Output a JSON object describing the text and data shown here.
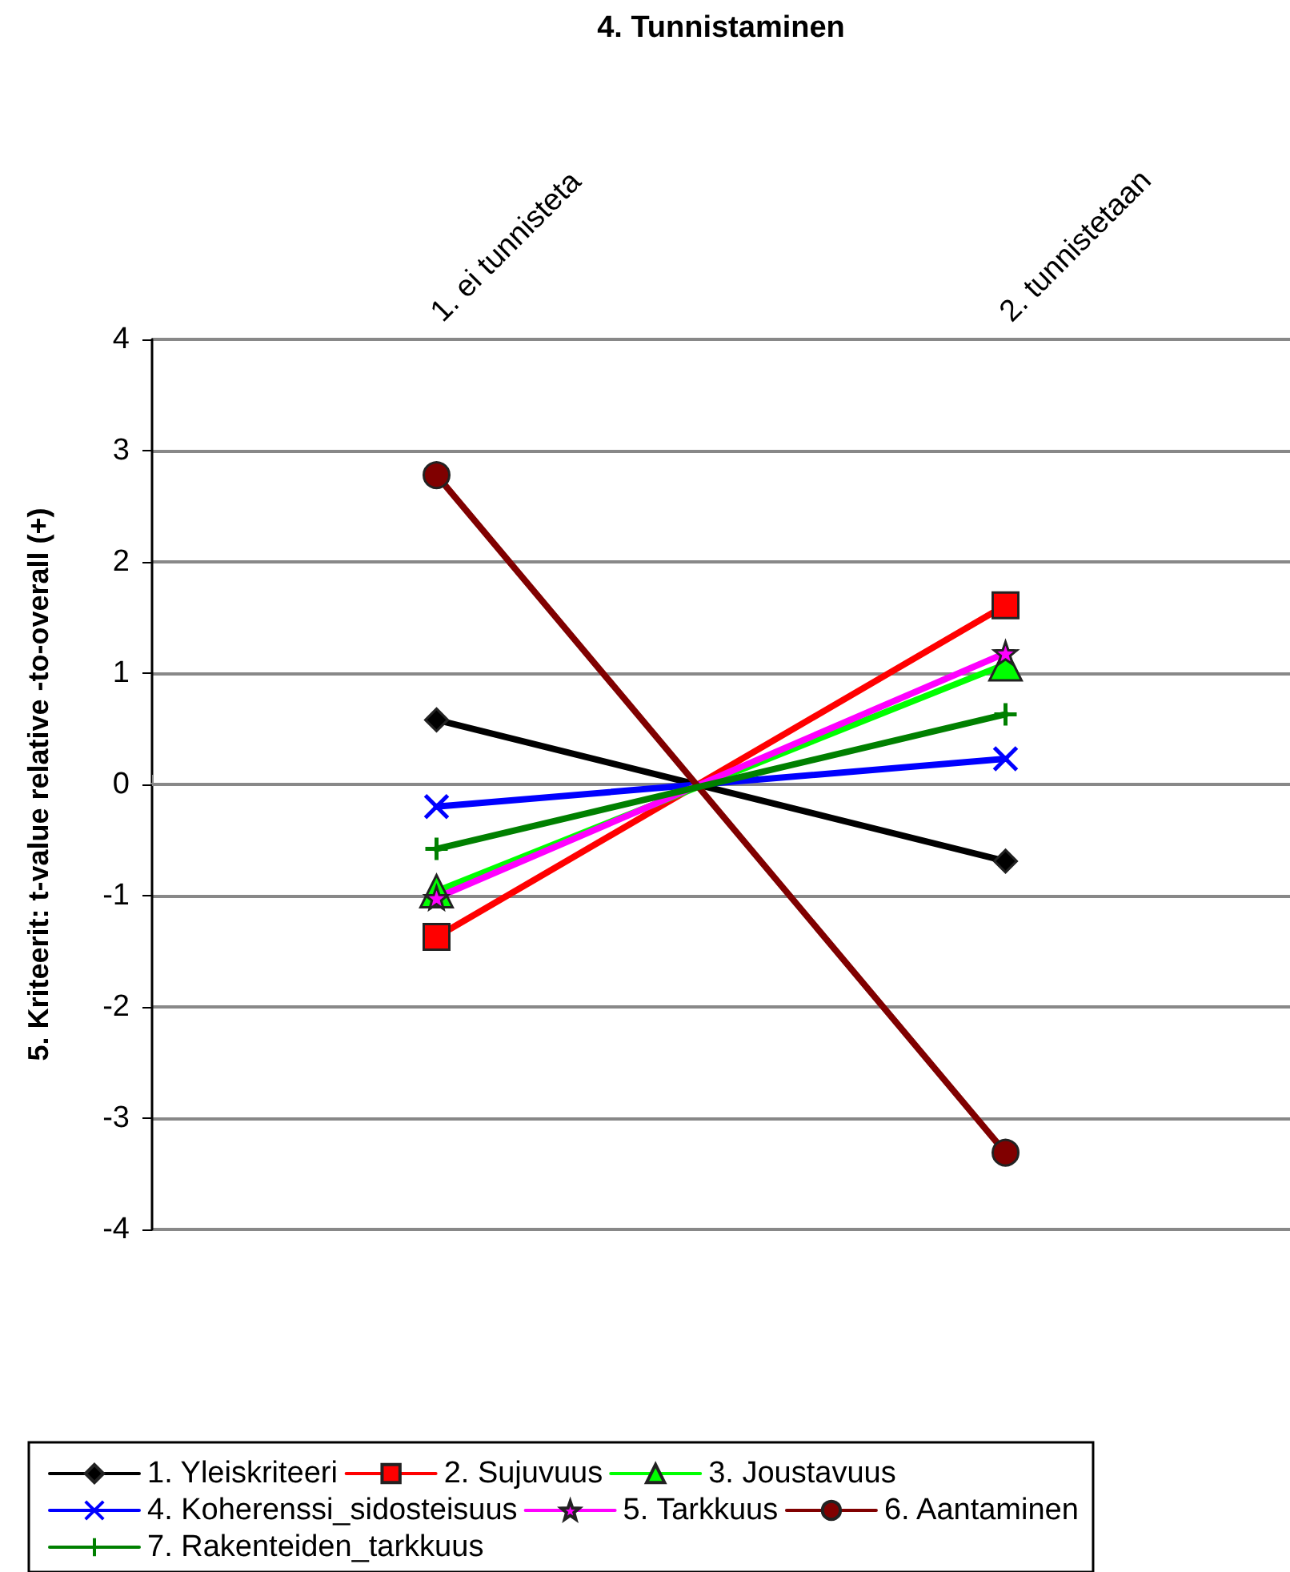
{
  "chart_data": {
    "type": "line",
    "xlabel": "4. Tunnistaminen",
    "ylabel": "5. Kriteerit: t-value relative -to-overall (+)",
    "categories": [
      "1. ei tunnisteta",
      "2. tunnistetaan"
    ],
    "series": [
      {
        "name": "1. Yleiskriteeri",
        "color": "#000000",
        "marker": "diamond",
        "values": [
          0.58,
          -0.69
        ]
      },
      {
        "name": "2. Sujuvuus",
        "color": "#ff0000",
        "marker": "square",
        "values": [
          -1.37,
          1.61
        ]
      },
      {
        "name": "3. Joustavuus",
        "color": "#00ff00",
        "marker": "triangle",
        "values": [
          -0.96,
          1.08
        ]
      },
      {
        "name": "4. Koherenssi_sidosteisuus",
        "color": "#0000ff",
        "marker": "cross",
        "values": [
          -0.2,
          0.23
        ]
      },
      {
        "name": "5. Tarkkuus",
        "color": "#ff00ff",
        "marker": "star",
        "values": [
          -1.02,
          1.18
        ]
      },
      {
        "name": "6. Aantaminen",
        "color": "#800000",
        "marker": "circle",
        "values": [
          2.78,
          -3.31
        ]
      },
      {
        "name": "7. Rakenteiden_tarkkuus",
        "color": "#008000",
        "marker": "plus",
        "values": [
          -0.58,
          0.63
        ]
      }
    ],
    "ylim": [
      -4,
      4
    ],
    "yticks": [
      -4,
      -3,
      -2,
      -1,
      0,
      1,
      2,
      3,
      4
    ],
    "grid": "y",
    "legend": "bottom",
    "line_style": "solid"
  }
}
